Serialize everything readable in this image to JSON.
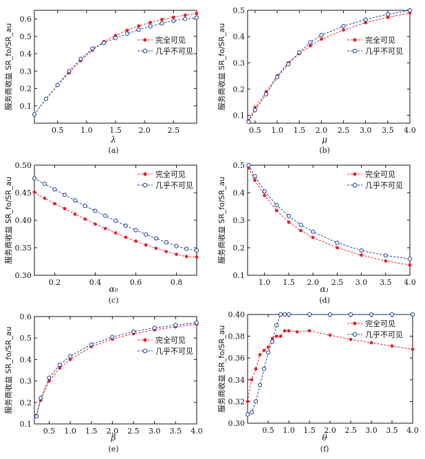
{
  "colors": {
    "full": "#e8202a",
    "almost": "#1c3f9b"
  },
  "chart_data": [
    {
      "type": "line",
      "panel_label": "(a)",
      "xlabel": "λ",
      "ylabel": "服务商收益 SR_fo/SR_au",
      "xlim": [
        0.1,
        2.9
      ],
      "ylim": [
        0,
        0.65
      ],
      "xticks": [
        0.5,
        1.0,
        1.5,
        2.0,
        2.5
      ],
      "yticks": [
        0.1,
        0.2,
        0.3,
        0.4,
        0.5,
        0.6
      ],
      "xtick_labels": [
        "0.5",
        "1.0",
        "1.5",
        "2.0",
        "2.5"
      ],
      "ytick_labels": [
        "0.1",
        "0.2",
        "0.3",
        "0.4",
        "0.5",
        "0.6"
      ],
      "legend": "right-middle",
      "series": [
        {
          "name": "完全可见",
          "key": "full",
          "x": [
            0.1,
            0.3,
            0.5,
            0.7,
            0.9,
            1.1,
            1.3,
            1.5,
            1.7,
            1.9,
            2.1,
            2.3,
            2.5,
            2.7,
            2.9
          ],
          "y": [
            0.05,
            0.14,
            0.22,
            0.29,
            0.36,
            0.42,
            0.47,
            0.505,
            0.535,
            0.56,
            0.58,
            0.597,
            0.61,
            0.622,
            0.632
          ]
        },
        {
          "name": "几乎不可见",
          "key": "almost",
          "x": [
            0.1,
            0.3,
            0.5,
            0.7,
            0.9,
            1.1,
            1.3,
            1.5,
            1.7,
            1.9,
            2.1,
            2.3,
            2.5,
            2.7,
            2.9
          ],
          "y": [
            0.05,
            0.14,
            0.22,
            0.3,
            0.37,
            0.43,
            0.462,
            0.49,
            0.515,
            0.538,
            0.558,
            0.575,
            0.59,
            0.6,
            0.608
          ]
        }
      ]
    },
    {
      "type": "line",
      "panel_label": "(b)",
      "xlabel": "μ",
      "ylabel": "服务商收益 SR_fo/SR_au",
      "xlim": [
        0.33,
        4.0
      ],
      "ylim": [
        0.07,
        0.5
      ],
      "xticks": [
        0.5,
        1.0,
        1.5,
        2.0,
        2.5,
        3.0,
        3.5,
        4.0
      ],
      "yticks": [
        0.1,
        0.2,
        0.3,
        0.4,
        0.5
      ],
      "xtick_labels": [
        "0.5",
        "1.0",
        "1.5",
        "2.0",
        "2.5",
        "3.0",
        "3.5",
        "4.0"
      ],
      "ytick_labels": [
        "0.1",
        "0.2",
        "0.3",
        "0.4",
        "0.5"
      ],
      "legend": "right-middle",
      "series": [
        {
          "name": "完全可见",
          "key": "full",
          "x": [
            0.35,
            0.5,
            0.75,
            1.0,
            1.25,
            1.5,
            1.75,
            2.0,
            2.5,
            3.0,
            3.5,
            4.0
          ],
          "y": [
            0.08,
            0.13,
            0.19,
            0.25,
            0.3,
            0.335,
            0.365,
            0.39,
            0.425,
            0.453,
            0.473,
            0.49
          ]
        },
        {
          "name": "几乎不可见",
          "key": "almost",
          "x": [
            0.35,
            0.5,
            0.75,
            1.0,
            1.25,
            1.5,
            1.75,
            2.0,
            2.5,
            3.0,
            3.5,
            4.0
          ],
          "y": [
            0.075,
            0.12,
            0.18,
            0.245,
            0.295,
            0.34,
            0.378,
            0.405,
            0.44,
            0.465,
            0.485,
            0.5
          ]
        }
      ]
    },
    {
      "type": "line",
      "panel_label": "(c)",
      "xlabel": "α₀",
      "ylabel": "服务商收益 SR_fo/SR_au",
      "xlim": [
        0.1,
        0.9
      ],
      "ylim": [
        0.3,
        0.5
      ],
      "xticks": [
        0.2,
        0.4,
        0.6,
        0.8
      ],
      "yticks": [
        0.3,
        0.35,
        0.4,
        0.45,
        0.5
      ],
      "xtick_labels": [
        "0.2",
        "0.4",
        "0.6",
        "0.8"
      ],
      "ytick_labels": [
        "0.30",
        "0.35",
        "0.40",
        "0.45",
        "0.50"
      ],
      "legend": "top-right",
      "series": [
        {
          "name": "完全可见",
          "key": "full",
          "x": [
            0.1,
            0.15,
            0.2,
            0.25,
            0.3,
            0.35,
            0.4,
            0.45,
            0.5,
            0.55,
            0.6,
            0.65,
            0.7,
            0.75,
            0.8,
            0.85,
            0.9
          ],
          "y": [
            0.451,
            0.44,
            0.43,
            0.421,
            0.411,
            0.402,
            0.393,
            0.385,
            0.377,
            0.369,
            0.362,
            0.355,
            0.349,
            0.343,
            0.338,
            0.334,
            0.333
          ]
        },
        {
          "name": "几乎不可见",
          "key": "almost",
          "x": [
            0.1,
            0.15,
            0.2,
            0.25,
            0.3,
            0.35,
            0.4,
            0.45,
            0.5,
            0.55,
            0.6,
            0.65,
            0.7,
            0.75,
            0.8,
            0.85,
            0.9
          ],
          "y": [
            0.476,
            0.466,
            0.456,
            0.446,
            0.436,
            0.426,
            0.417,
            0.408,
            0.399,
            0.39,
            0.382,
            0.374,
            0.367,
            0.36,
            0.353,
            0.348,
            0.345
          ]
        }
      ]
    },
    {
      "type": "line",
      "panel_label": "(d)",
      "xlabel": "α₁",
      "ylabel": "服务商收益 SR_fo/SR_au",
      "xlim": [
        0.65,
        4.0
      ],
      "ylim": [
        0.1,
        0.5
      ],
      "xticks": [
        1.0,
        1.5,
        2.0,
        2.5,
        3.0,
        3.5,
        4.0
      ],
      "yticks": [
        0.1,
        0.2,
        0.3,
        0.4,
        0.5
      ],
      "xtick_labels": [
        "1.0",
        "1.5",
        "2.0",
        "2.5",
        "3.0",
        "3.5",
        "4.0"
      ],
      "ytick_labels": [
        "0.1",
        "0.2",
        "0.3",
        "0.4",
        "0.5"
      ],
      "legend": "top-right",
      "series": [
        {
          "name": "完全可见",
          "key": "full",
          "x": [
            0.67,
            0.8,
            1.0,
            1.25,
            1.5,
            1.75,
            2.0,
            2.5,
            3.0,
            3.5,
            4.0
          ],
          "y": [
            0.49,
            0.445,
            0.39,
            0.335,
            0.293,
            0.262,
            0.237,
            0.2,
            0.173,
            0.152,
            0.137
          ]
        },
        {
          "name": "几乎不可见",
          "key": "almost",
          "x": [
            0.67,
            0.8,
            1.0,
            1.25,
            1.5,
            1.75,
            2.0,
            2.5,
            3.0,
            3.5,
            4.0
          ],
          "y": [
            0.5,
            0.46,
            0.405,
            0.355,
            0.315,
            0.283,
            0.258,
            0.218,
            0.19,
            0.172,
            0.159
          ]
        }
      ]
    },
    {
      "type": "line",
      "panel_label": "(e)",
      "xlabel": "β",
      "ylabel": "服务商收益 SR_fo/SR_au",
      "xlim": [
        0.15,
        4.0
      ],
      "ylim": [
        0.1,
        0.6
      ],
      "xticks": [
        0.5,
        1.0,
        1.5,
        2.0,
        2.5,
        3.0,
        3.5,
        4.0
      ],
      "yticks": [
        0.1,
        0.2,
        0.3,
        0.4,
        0.5,
        0.6
      ],
      "xtick_labels": [
        "0.5",
        "1.0",
        "1.5",
        "2.0",
        "2.5",
        "3.0",
        "3.5",
        "4.0"
      ],
      "ytick_labels": [
        "0.1",
        "0.2",
        "0.3",
        "0.4",
        "0.5",
        "0.6"
      ],
      "legend": "right-middle",
      "series": [
        {
          "name": "完全可见",
          "key": "full",
          "x": [
            0.2,
            0.3,
            0.5,
            0.75,
            1.0,
            1.5,
            2.0,
            2.5,
            3.0,
            3.5,
            4.0
          ],
          "y": [
            0.14,
            0.21,
            0.3,
            0.36,
            0.4,
            0.46,
            0.495,
            0.52,
            0.538,
            0.552,
            0.565
          ]
        },
        {
          "name": "几乎不可见",
          "key": "almost",
          "x": [
            0.2,
            0.3,
            0.5,
            0.75,
            1.0,
            1.5,
            2.0,
            2.5,
            3.0,
            3.5,
            4.0
          ],
          "y": [
            0.135,
            0.22,
            0.315,
            0.375,
            0.415,
            0.47,
            0.505,
            0.53,
            0.547,
            0.56,
            0.572
          ]
        }
      ]
    },
    {
      "type": "line",
      "panel_label": "(f)",
      "xlabel": "θ",
      "ylabel": "服务商收益 SR_fo/SR_au",
      "xlim": [
        0.0,
        4.0
      ],
      "ylim": [
        0.3,
        0.4
      ],
      "xticks": [
        0.5,
        1.0,
        1.5,
        2.0,
        2.5,
        3.0,
        3.5,
        4.0
      ],
      "yticks": [
        0.3,
        0.32,
        0.34,
        0.36,
        0.38,
        0.4
      ],
      "xtick_labels": [
        "0.5",
        "1.0",
        "1.5",
        "2.0",
        "2.5",
        "3.0",
        "3.5",
        "4.0"
      ],
      "ytick_labels": [
        "0.30",
        "0.32",
        "0.34",
        "0.36",
        "0.38",
        "0.40"
      ],
      "legend": "top-right",
      "series": [
        {
          "name": "完全可见",
          "key": "full",
          "x": [
            0.0,
            0.1,
            0.2,
            0.3,
            0.4,
            0.5,
            0.6,
            0.7,
            0.8,
            0.9,
            1.0,
            1.2,
            1.5,
            2.0,
            2.5,
            3.0,
            3.5,
            4.0
          ],
          "y": [
            0.32,
            0.34,
            0.35,
            0.363,
            0.367,
            0.37,
            0.378,
            0.38,
            0.38,
            0.385,
            0.385,
            0.384,
            0.385,
            0.381,
            0.377,
            0.374,
            0.371,
            0.368
          ]
        },
        {
          "name": "几乎不可见",
          "key": "almost",
          "x": [
            0.0,
            0.1,
            0.2,
            0.3,
            0.4,
            0.5,
            0.6,
            0.7,
            0.8,
            0.9,
            1.0,
            1.5,
            2.0,
            2.5,
            3.0,
            3.5,
            4.0
          ],
          "y": [
            0.308,
            0.31,
            0.32,
            0.335,
            0.35,
            0.365,
            0.375,
            0.39,
            0.4,
            0.4,
            0.4,
            0.4,
            0.4,
            0.4,
            0.4,
            0.4,
            0.4
          ]
        }
      ]
    }
  ]
}
